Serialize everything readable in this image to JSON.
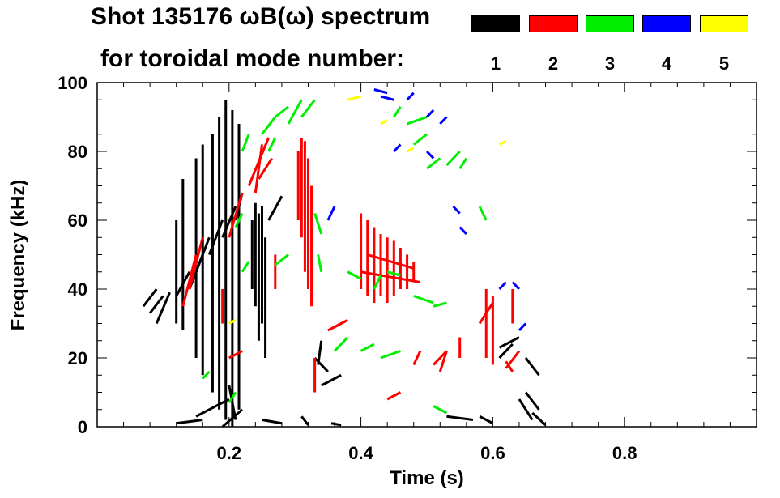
{
  "title_line1": "Shot 135176 ωB(ω) spectrum",
  "title_line2": "for toroidal mode number:",
  "legend": [
    {
      "label": "1",
      "color": "#000000"
    },
    {
      "label": "2",
      "color": "#ff0000"
    },
    {
      "label": "3",
      "color": "#00ee00"
    },
    {
      "label": "4",
      "color": "#0000ff"
    },
    {
      "label": "5",
      "color": "#ffff00"
    }
  ],
  "chart_data": {
    "type": "scatter",
    "title": "Shot 135176 ωB(ω) spectrum",
    "xlabel": "Time (s)",
    "ylabel": "Frequency (kHz)",
    "xlim": [
      0.0,
      1.0
    ],
    "ylim": [
      0,
      100
    ],
    "xticks": [
      0.2,
      0.4,
      0.6,
      0.8
    ],
    "xtick_labels": [
      "0.2",
      "0.4",
      "0.6",
      "0.8"
    ],
    "yticks": [
      0,
      20,
      40,
      60,
      80,
      100
    ],
    "ytick_labels": [
      "0",
      "20",
      "40",
      "60",
      "80",
      "100"
    ],
    "series": [
      {
        "name": "1",
        "color": "#000000",
        "segments": [
          [
            0.07,
            35,
            0.09,
            40
          ],
          [
            0.08,
            33,
            0.1,
            38
          ],
          [
            0.09,
            30,
            0.11,
            39
          ],
          [
            0.12,
            38,
            0.14,
            45
          ],
          [
            0.14,
            40,
            0.16,
            50
          ],
          [
            0.15,
            45,
            0.17,
            55
          ],
          [
            0.17,
            50,
            0.19,
            60
          ],
          [
            0.19,
            55,
            0.21,
            64
          ],
          [
            0.21,
            60,
            0.22,
            68
          ],
          [
            0.12,
            30,
            0.12,
            60
          ],
          [
            0.13,
            28,
            0.13,
            72
          ],
          [
            0.15,
            20,
            0.15,
            78
          ],
          [
            0.16,
            15,
            0.16,
            82
          ],
          [
            0.175,
            10,
            0.175,
            85
          ],
          [
            0.185,
            5,
            0.185,
            90
          ],
          [
            0.195,
            2,
            0.195,
            95
          ],
          [
            0.205,
            0,
            0.205,
            92
          ],
          [
            0.215,
            5,
            0.215,
            88
          ],
          [
            0.24,
            35,
            0.24,
            65
          ],
          [
            0.25,
            30,
            0.25,
            64
          ],
          [
            0.245,
            25,
            0.245,
            62
          ],
          [
            0.26,
            60,
            0.28,
            67
          ],
          [
            0.255,
            20,
            0.255,
            55
          ],
          [
            0.235,
            40,
            0.235,
            60
          ],
          [
            0.33,
            20,
            0.35,
            16
          ],
          [
            0.34,
            12,
            0.37,
            15
          ],
          [
            0.335,
            18,
            0.34,
            25
          ],
          [
            0.15,
            3,
            0.2,
            8
          ],
          [
            0.19,
            0,
            0.22,
            5
          ],
          [
            0.2,
            12,
            0.21,
            2
          ],
          [
            0.61,
            23,
            0.64,
            26
          ],
          [
            0.61,
            20,
            0.63,
            24
          ],
          [
            0.65,
            20,
            0.67,
            15
          ],
          [
            0.65,
            10,
            0.67,
            5
          ],
          [
            0.66,
            4,
            0.68,
            0.5
          ],
          [
            0.64,
            8,
            0.66,
            2
          ],
          [
            0.53,
            3,
            0.57,
            2
          ],
          [
            0.58,
            3,
            0.6,
            1
          ],
          [
            0.12,
            1,
            0.16,
            2
          ],
          [
            0.25,
            2,
            0.28,
            1
          ],
          [
            0.31,
            3,
            0.32,
            0.5
          ],
          [
            0.355,
            1,
            0.37,
            0.5
          ]
        ]
      },
      {
        "name": "2",
        "color": "#ff0000",
        "segments": [
          [
            0.23,
            70,
            0.26,
            84
          ],
          [
            0.24,
            68,
            0.25,
            82
          ],
          [
            0.245,
            72,
            0.265,
            78
          ],
          [
            0.31,
            55,
            0.31,
            84
          ],
          [
            0.315,
            45,
            0.315,
            83
          ],
          [
            0.32,
            40,
            0.32,
            78
          ],
          [
            0.325,
            35,
            0.325,
            70
          ],
          [
            0.305,
            60,
            0.305,
            80
          ],
          [
            0.4,
            40,
            0.4,
            62
          ],
          [
            0.41,
            38,
            0.41,
            60
          ],
          [
            0.42,
            36,
            0.42,
            58
          ],
          [
            0.43,
            38,
            0.43,
            56
          ],
          [
            0.44,
            36,
            0.44,
            55
          ],
          [
            0.45,
            38,
            0.45,
            54
          ],
          [
            0.46,
            40,
            0.46,
            52
          ],
          [
            0.47,
            40,
            0.47,
            50
          ],
          [
            0.48,
            42,
            0.48,
            48
          ],
          [
            0.4,
            45,
            0.49,
            42
          ],
          [
            0.41,
            50,
            0.48,
            46
          ],
          [
            0.14,
            40,
            0.16,
            55
          ],
          [
            0.13,
            35,
            0.15,
            50
          ],
          [
            0.2,
            55,
            0.22,
            68
          ],
          [
            0.35,
            28,
            0.37,
            30
          ],
          [
            0.36,
            29,
            0.38,
            31
          ],
          [
            0.51,
            18,
            0.53,
            22
          ],
          [
            0.52,
            16,
            0.53,
            22
          ],
          [
            0.55,
            20,
            0.55,
            26
          ],
          [
            0.58,
            30,
            0.6,
            36
          ],
          [
            0.59,
            20,
            0.59,
            40
          ],
          [
            0.6,
            18,
            0.6,
            38
          ],
          [
            0.62,
            17,
            0.64,
            22
          ],
          [
            0.62,
            19,
            0.63,
            16
          ],
          [
            0.63,
            30,
            0.63,
            40
          ],
          [
            0.19,
            30,
            0.19,
            40
          ],
          [
            0.27,
            40,
            0.27,
            50
          ],
          [
            0.33,
            10,
            0.33,
            20
          ],
          [
            0.44,
            8,
            0.46,
            10
          ],
          [
            0.2,
            20,
            0.22,
            22
          ],
          [
            0.48,
            18,
            0.49,
            22
          ]
        ]
      },
      {
        "name": "3",
        "color": "#00ee00",
        "segments": [
          [
            0.25,
            85,
            0.27,
            90
          ],
          [
            0.27,
            90,
            0.29,
            93
          ],
          [
            0.29,
            88,
            0.31,
            95
          ],
          [
            0.31,
            90,
            0.33,
            95
          ],
          [
            0.26,
            80,
            0.27,
            84
          ],
          [
            0.33,
            62,
            0.34,
            56
          ],
          [
            0.335,
            50,
            0.34,
            45
          ],
          [
            0.27,
            47,
            0.29,
            50
          ],
          [
            0.47,
            88,
            0.5,
            90
          ],
          [
            0.48,
            82,
            0.5,
            85
          ],
          [
            0.5,
            75,
            0.52,
            78
          ],
          [
            0.53,
            76,
            0.55,
            80
          ],
          [
            0.55,
            75,
            0.56,
            78
          ],
          [
            0.58,
            64,
            0.59,
            60
          ],
          [
            0.45,
            90,
            0.46,
            93
          ],
          [
            0.42,
            40,
            0.43,
            44
          ],
          [
            0.44,
            45,
            0.46,
            44
          ],
          [
            0.38,
            45,
            0.4,
            43
          ],
          [
            0.48,
            38,
            0.51,
            36
          ],
          [
            0.51,
            35,
            0.53,
            36
          ],
          [
            0.4,
            22,
            0.42,
            24
          ],
          [
            0.43,
            20,
            0.46,
            22
          ],
          [
            0.36,
            22,
            0.38,
            26
          ],
          [
            0.16,
            14,
            0.17,
            16
          ],
          [
            0.2,
            7,
            0.21,
            10
          ],
          [
            0.51,
            6,
            0.53,
            4
          ],
          [
            0.22,
            80,
            0.23,
            85
          ],
          [
            0.21,
            58,
            0.22,
            62
          ],
          [
            0.22,
            45,
            0.23,
            48
          ]
        ]
      },
      {
        "name": "4",
        "color": "#0000ff",
        "segments": [
          [
            0.42,
            98,
            0.44,
            97
          ],
          [
            0.43,
            96,
            0.45,
            95
          ],
          [
            0.47,
            95,
            0.48,
            97
          ],
          [
            0.5,
            90,
            0.51,
            92
          ],
          [
            0.52,
            88,
            0.53,
            90
          ],
          [
            0.54,
            64,
            0.55,
            62
          ],
          [
            0.55,
            58,
            0.56,
            56
          ],
          [
            0.63,
            42,
            0.64,
            40
          ],
          [
            0.64,
            28,
            0.65,
            30
          ],
          [
            0.61,
            40,
            0.62,
            42
          ],
          [
            0.5,
            80,
            0.51,
            78
          ],
          [
            0.45,
            80,
            0.46,
            82
          ],
          [
            0.35,
            60,
            0.36,
            64
          ]
        ]
      },
      {
        "name": "5",
        "color": "#ffff00",
        "segments": [
          [
            0.38,
            95,
            0.4,
            96
          ],
          [
            0.43,
            88,
            0.44,
            89
          ],
          [
            0.61,
            82,
            0.62,
            83
          ],
          [
            0.47,
            80,
            0.48,
            81
          ],
          [
            0.2,
            30,
            0.21,
            31
          ]
        ]
      }
    ]
  }
}
